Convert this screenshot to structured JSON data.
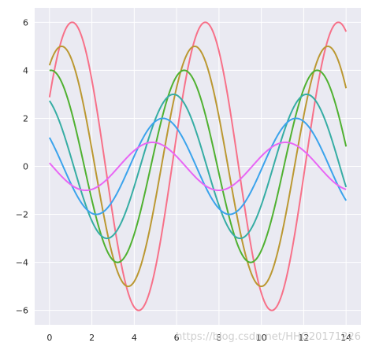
{
  "chart_data": {
    "type": "line",
    "title": "",
    "xlabel": "",
    "ylabel": "",
    "xlim": [
      -0.7,
      14.7
    ],
    "ylim": [
      -6.6,
      6.6
    ],
    "x_ticks": [
      0,
      2,
      4,
      6,
      8,
      10,
      12,
      14
    ],
    "y_ticks": [
      -6,
      -4,
      -2,
      0,
      2,
      4,
      6
    ],
    "x_tick_labels": [
      "0",
      "2",
      "4",
      "6",
      "8",
      "10",
      "12",
      "14"
    ],
    "y_tick_labels": [
      "−6",
      "−4",
      "−2",
      "0",
      "2",
      "4",
      "6"
    ],
    "grid": true,
    "background": "#EAEAF2",
    "grid_color": "#FFFFFF",
    "x_range": [
      0,
      14
    ],
    "curve_form": "y = amplitude * sin(x + phase)",
    "series": [
      {
        "amplitude": 6,
        "phase": 0.5,
        "color": "#F77189"
      },
      {
        "amplitude": 5,
        "phase": 1.0,
        "color": "#BB9832"
      },
      {
        "amplitude": 4,
        "phase": 1.5,
        "color": "#50B131"
      },
      {
        "amplitude": 3,
        "phase": 2.0,
        "color": "#36ADA4"
      },
      {
        "amplitude": 2,
        "phase": 2.5,
        "color": "#3BA3EC"
      },
      {
        "amplitude": 1,
        "phase": 3.0,
        "color": "#E866F4"
      }
    ]
  },
  "watermark": "https://blog.csdn.net/HHG20171226"
}
